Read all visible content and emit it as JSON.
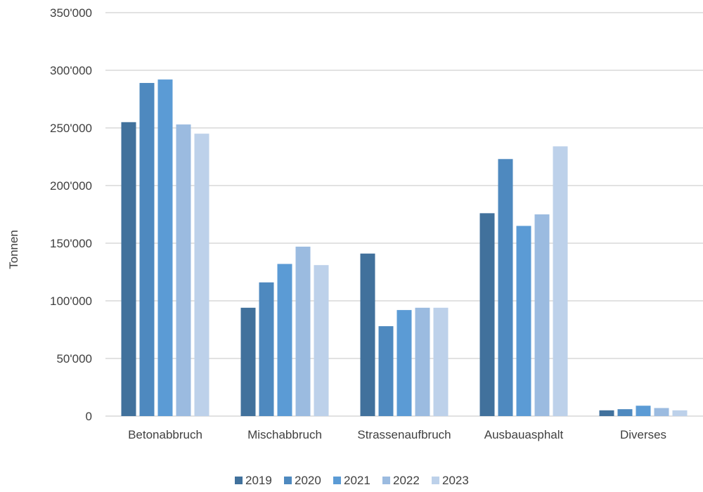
{
  "chart_data": {
    "type": "bar",
    "title": "",
    "xlabel": "",
    "ylabel": "Tonnen",
    "ylim": [
      0,
      350000
    ],
    "yticks": [
      0,
      50000,
      100000,
      150000,
      200000,
      250000,
      300000,
      350000
    ],
    "ytick_labels": [
      "0",
      "50'000",
      "100'000",
      "150'000",
      "200'000",
      "250'000",
      "300'000",
      "350'000"
    ],
    "categories": [
      "Betonabbruch",
      "Mischabbruch",
      "Strassenaufbruch",
      "Ausbauasphalt",
      "Diverses"
    ],
    "grid": "horizontal",
    "legend_position": "bottom-center",
    "series": [
      {
        "name": "2019",
        "color": "#41719c",
        "values": [
          255000,
          94000,
          141000,
          176000,
          5000
        ]
      },
      {
        "name": "2020",
        "color": "#4e89bf",
        "values": [
          289000,
          116000,
          78000,
          223000,
          6000
        ]
      },
      {
        "name": "2021",
        "color": "#5b9bd5",
        "values": [
          292000,
          132000,
          92000,
          165000,
          9000
        ]
      },
      {
        "name": "2022",
        "color": "#9bbbe0",
        "values": [
          253000,
          147000,
          94000,
          175000,
          7000
        ]
      },
      {
        "name": "2023",
        "color": "#bdd1ea",
        "values": [
          245000,
          131000,
          94000,
          234000,
          5000
        ]
      }
    ]
  }
}
